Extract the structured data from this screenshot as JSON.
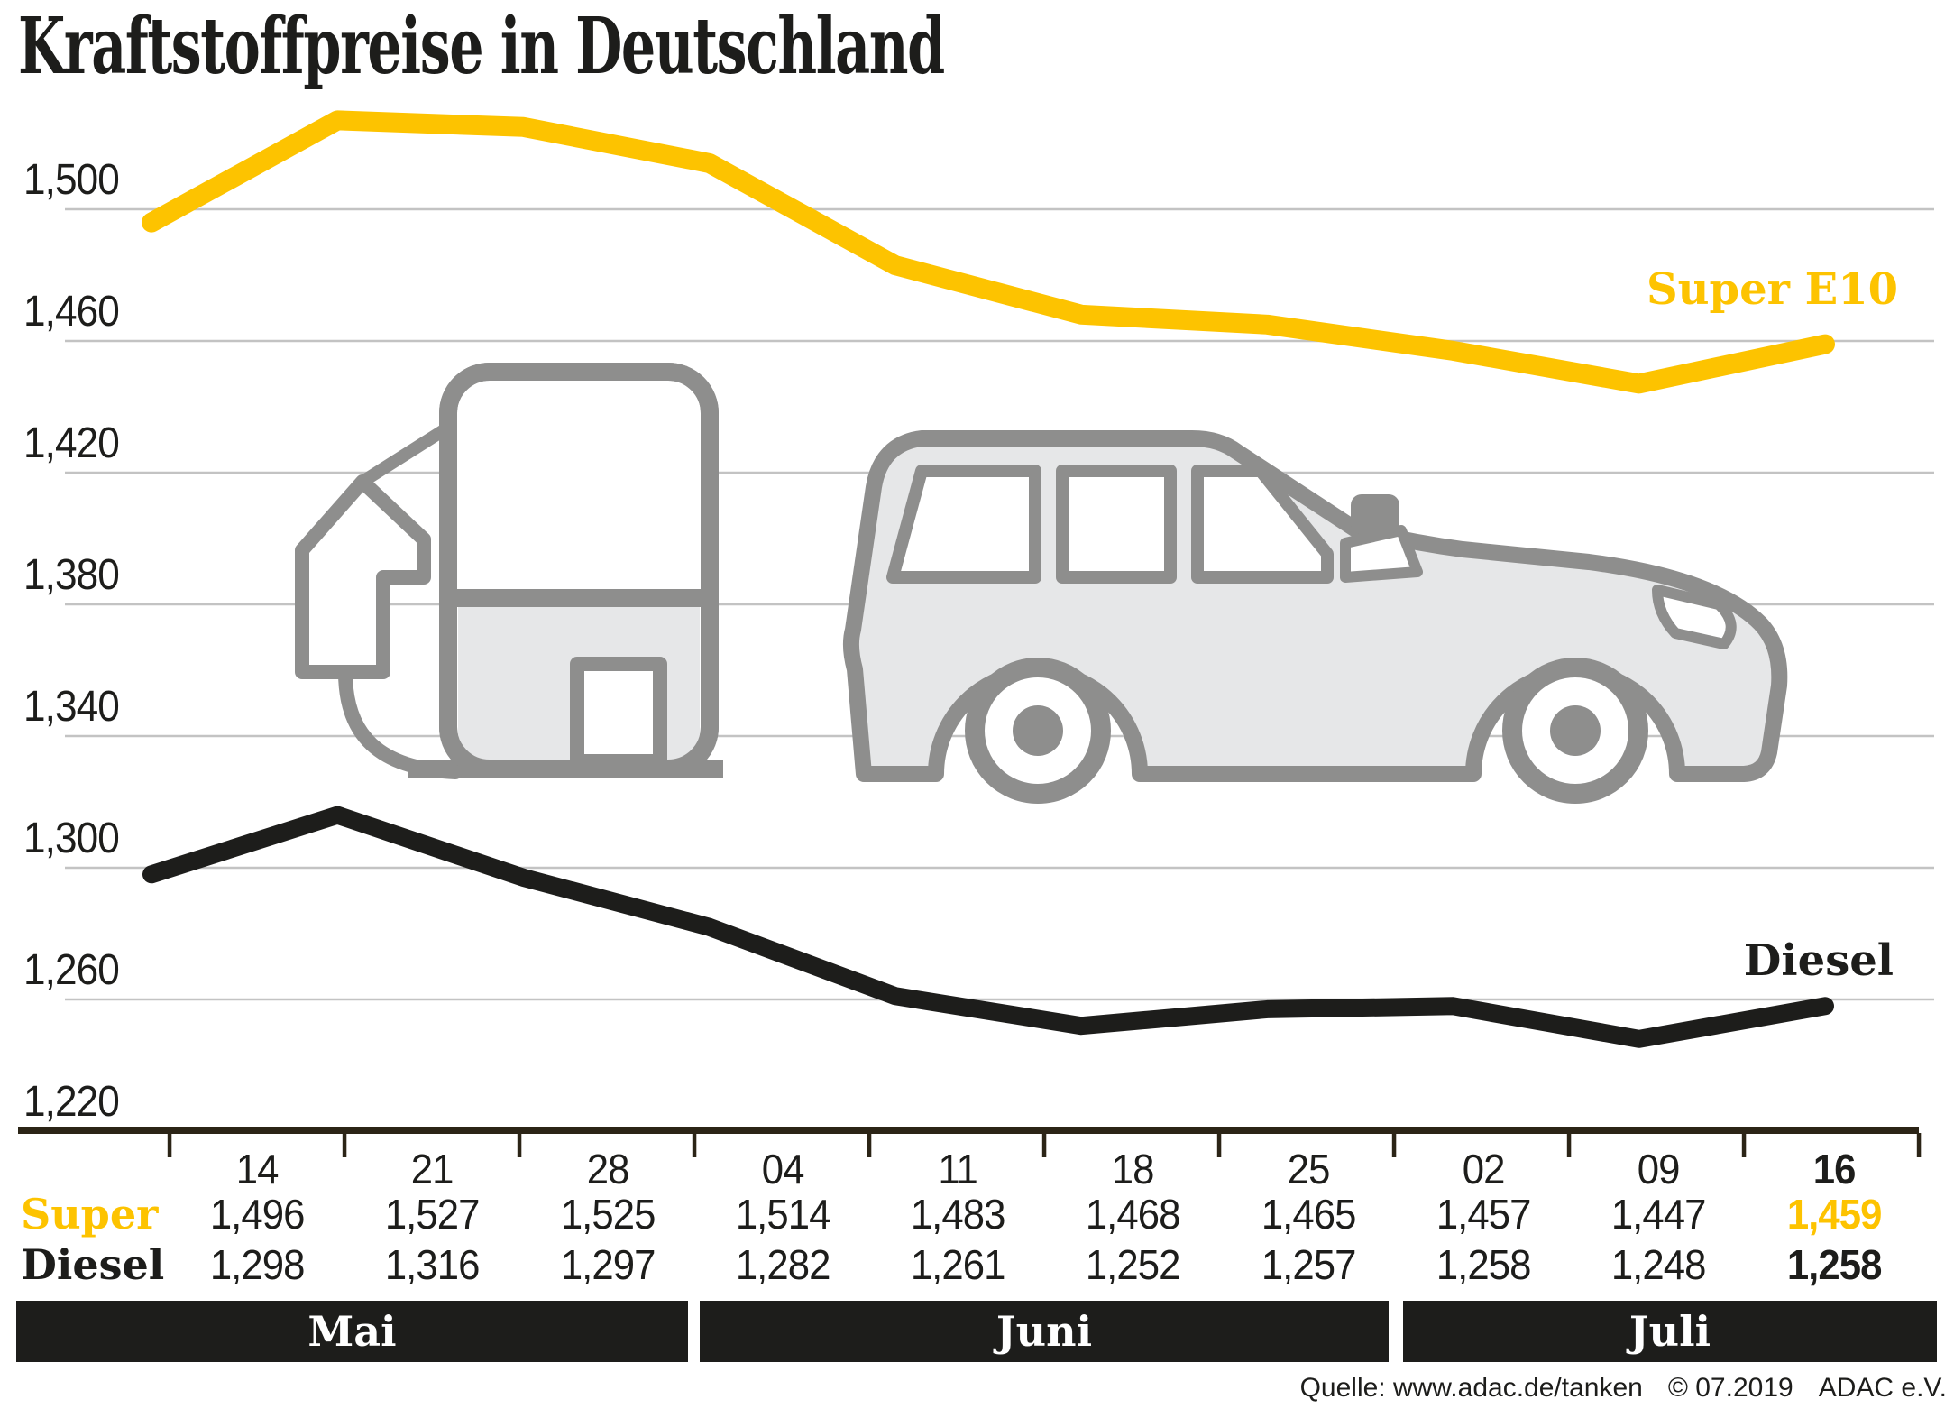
{
  "title": "Kraftstoffpreise in Deutschland",
  "series_labels": {
    "super": "Super E10",
    "diesel": "Diesel"
  },
  "table": {
    "row_labels": {
      "super": "Super",
      "diesel": "Diesel"
    },
    "dates": [
      "14",
      "21",
      "28",
      "04",
      "11",
      "18",
      "25",
      "02",
      "09",
      "16"
    ],
    "super_values": [
      "1,496",
      "1,527",
      "1,525",
      "1,514",
      "1,483",
      "1,468",
      "1,465",
      "1,457",
      "1,447",
      "1,459"
    ],
    "diesel_values": [
      "1,298",
      "1,316",
      "1,297",
      "1,282",
      "1,261",
      "1,252",
      "1,257",
      "1,258",
      "1,248",
      "1,258"
    ],
    "months": [
      {
        "label": "Mai",
        "columns": 3
      },
      {
        "label": "Juni",
        "columns": 4
      },
      {
        "label": "Juli",
        "columns": 3
      }
    ]
  },
  "source": {
    "label": "Quelle: www.adac.de/tanken",
    "copyright": "© 07.2019",
    "org": "ADAC e.V."
  },
  "colors": {
    "accent_yellow": "#fdc300",
    "ink": "#1d1d1b",
    "gridline": "#c3c3c3",
    "axis_bar": "#2b2416",
    "art_stroke": "#8e8e8d",
    "art_fill": "#e6e7e8",
    "month_bar": "#1d1d1b"
  },
  "illustrations": {
    "pump": "fuel-pump-icon",
    "car": "suv-car-icon"
  },
  "chart_data": {
    "type": "line",
    "title": "Kraftstoffpreise in Deutschland",
    "x_tick_labels": [
      "14",
      "21",
      "28",
      "04",
      "11",
      "18",
      "25",
      "02",
      "09",
      "16"
    ],
    "x_month_groups": [
      "Mai",
      "Juni",
      "Juli"
    ],
    "y_tick_labels": [
      "1,500",
      "1,460",
      "1,420",
      "1,380",
      "1,340",
      "1,300",
      "1,260",
      "1,220"
    ],
    "y_tick_values": [
      1500,
      1460,
      1420,
      1380,
      1340,
      1300,
      1260,
      1220
    ],
    "ylim": [
      1220,
      1540
    ],
    "grid": true,
    "legend_position": "inline-right-of-lines",
    "series": [
      {
        "name": "Super E10",
        "color": "#fdc300",
        "values": [
          1496,
          1527,
          1525,
          1514,
          1483,
          1468,
          1465,
          1457,
          1447,
          1459
        ]
      },
      {
        "name": "Diesel",
        "color": "#1d1d1b",
        "values": [
          1298,
          1316,
          1297,
          1282,
          1261,
          1252,
          1257,
          1258,
          1248,
          1258
        ]
      }
    ]
  }
}
